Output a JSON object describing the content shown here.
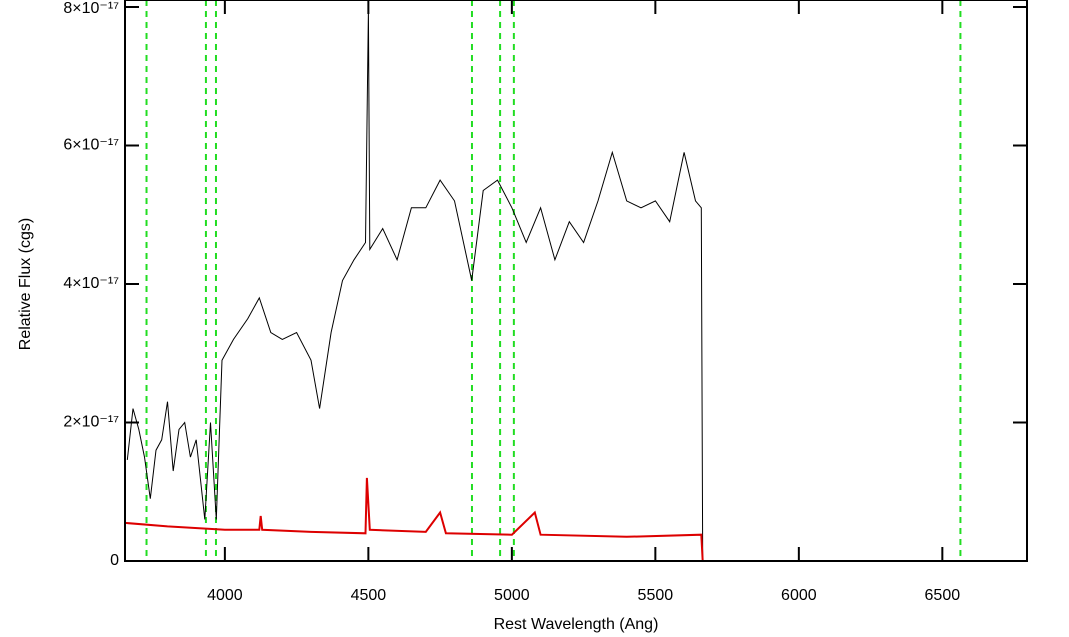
{
  "chart_data": {
    "type": "line",
    "xlabel": "Rest Wavelength (Ang)",
    "ylabel": "Relative Flux (cgs)",
    "xlim": [
      3652,
      6795
    ],
    "ylim": [
      0,
      8e-17
    ],
    "xticks": [
      4000,
      4500,
      5000,
      5500,
      6000,
      6500
    ],
    "yticks": [
      0,
      {
        "value": 2e-17,
        "label": "2×10⁻¹⁷"
      },
      {
        "value": 4e-17,
        "label": "4×10⁻¹⁷"
      },
      {
        "value": 6e-17,
        "label": "6×10⁻¹⁷"
      },
      {
        "value": 8e-17,
        "label": "8×10⁻¹⁷"
      }
    ],
    "vlines": [
      3727,
      3934,
      3969,
      4861,
      4959,
      5007,
      6563
    ],
    "vline_color": "#22dd22",
    "series": [
      {
        "color": "#000000",
        "x": [
          3660,
          3680,
          3700,
          3720,
          3740,
          3760,
          3780,
          3800,
          3820,
          3840,
          3860,
          3880,
          3900,
          3930,
          3950,
          3970,
          3990,
          4030,
          4080,
          4120,
          4160,
          4200,
          4250,
          4300,
          4330,
          4370,
          4410,
          4450,
          4490,
          4500,
          4505,
          4550,
          4600,
          4650,
          4700,
          4750,
          4800,
          4860,
          4900,
          4950,
          5000,
          5050,
          5100,
          5150,
          5200,
          5250,
          5300,
          5350,
          5400,
          5450,
          5500,
          5550,
          5600,
          5640,
          5660,
          5665,
          6795
        ],
        "values": [
          1.46e-17,
          2.2e-17,
          1.9e-17,
          1.5e-17,
          9e-18,
          1.6e-17,
          1.75e-17,
          2.3e-17,
          1.3e-17,
          1.9e-17,
          2e-17,
          1.5e-17,
          1.75e-17,
          6e-18,
          2e-17,
          6e-18,
          2.9e-17,
          3.2e-17,
          3.5e-17,
          3.8e-17,
          3.3e-17,
          3.2e-17,
          3.3e-17,
          2.9e-17,
          2.2e-17,
          3.3e-17,
          4.05e-17,
          4.35e-17,
          4.6e-17,
          7.95e-17,
          4.5e-17,
          4.8e-17,
          4.35e-17,
          5.1e-17,
          5.1e-17,
          5.5e-17,
          5.2e-17,
          4.05e-17,
          5.35e-17,
          5.5e-17,
          5.1e-17,
          4.6e-17,
          5.1e-17,
          4.35e-17,
          4.9e-17,
          4.6e-17,
          5.2e-17,
          5.9e-17,
          5.2e-17,
          5.1e-17,
          5.2e-17,
          4.9e-17,
          5.9e-17,
          5.2e-17,
          5.1e-17,
          0,
          0
        ]
      },
      {
        "color": "#dd0000",
        "x": [
          3652,
          3800,
          4000,
          4120,
          4125,
          4130,
          4300,
          4490,
          4495,
          4505,
          4700,
          4750,
          4770,
          5000,
          5080,
          5100,
          5400,
          5660,
          5665,
          6795
        ],
        "values": [
          5.5e-18,
          5e-18,
          4.5e-18,
          4.5e-18,
          6.5e-18,
          4.5e-18,
          4.2e-18,
          4e-18,
          1.2e-17,
          4.5e-18,
          4.2e-18,
          7e-18,
          4e-18,
          3.8e-18,
          7e-18,
          3.8e-18,
          3.5e-18,
          3.8e-18,
          0,
          0
        ]
      }
    ]
  }
}
